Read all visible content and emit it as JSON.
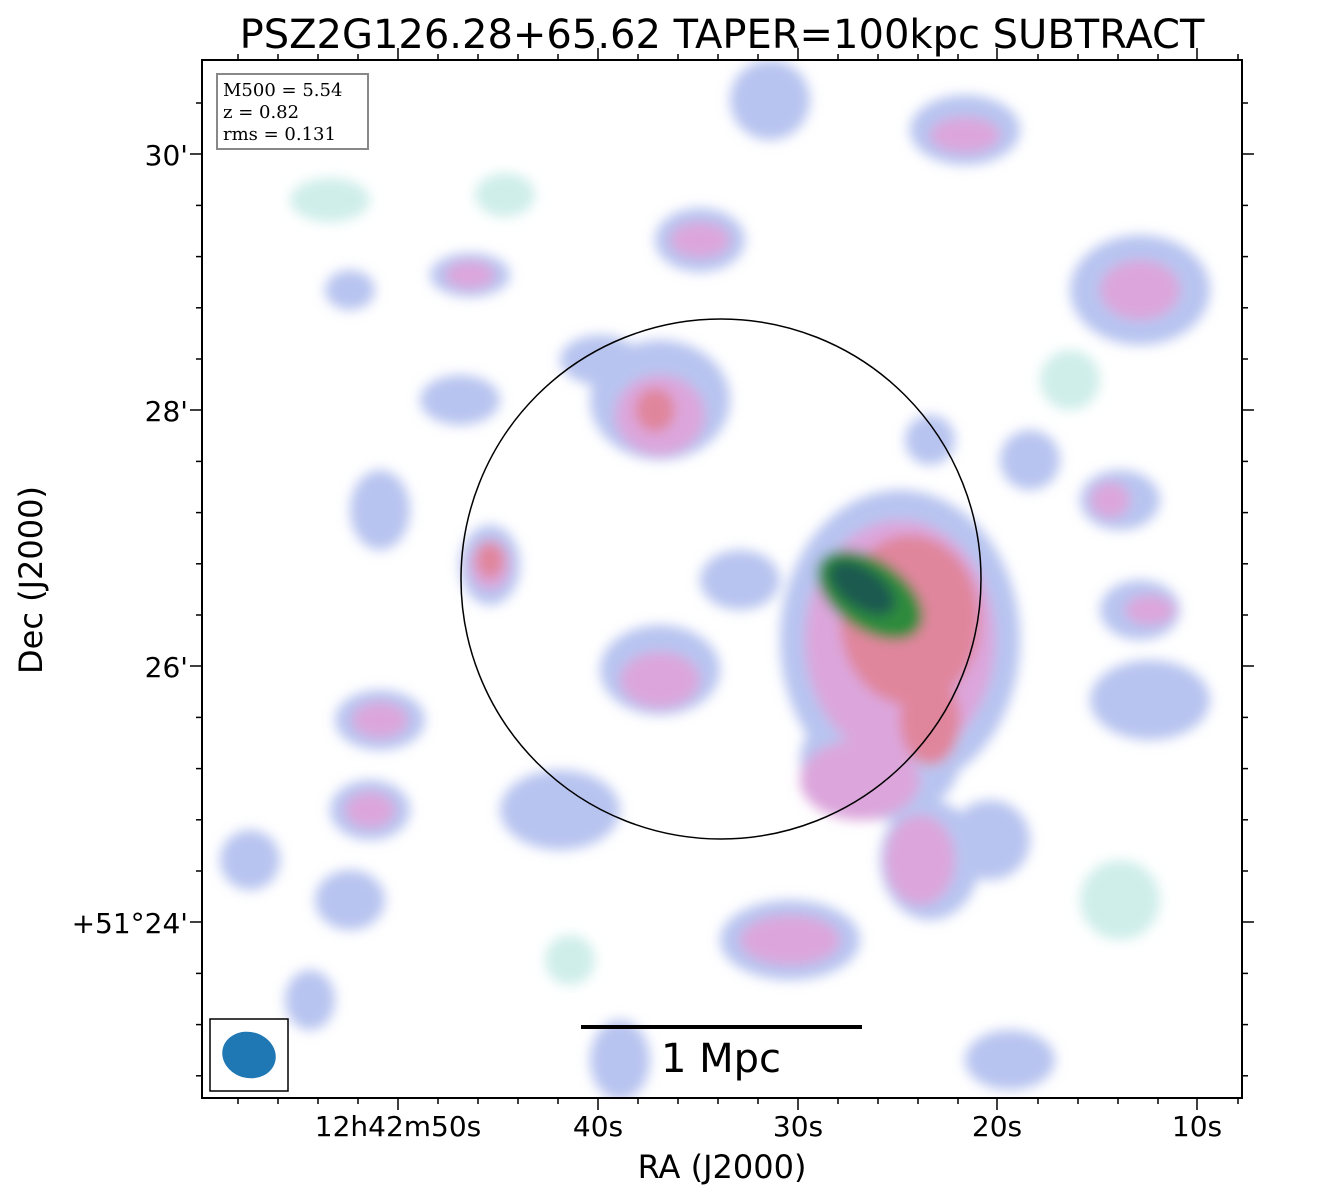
{
  "title": "PSZ2G126.28+65.62 TAPER=100kpc SUBTRACT",
  "info_box": {
    "line1": "M500 = 5.54",
    "line2": "z = 0.82",
    "line3": "rms = 0.131"
  },
  "x_axis": {
    "label": "RA (J2000)",
    "ticks": [
      "12h42m50s",
      "40s",
      "30s",
      "20s",
      "10s"
    ]
  },
  "y_axis": {
    "label": "Dec (J2000)",
    "ticks": [
      "30'",
      "28'",
      "26'",
      "+51°24'"
    ]
  },
  "scale_bar": {
    "label": "1 Mpc"
  },
  "colors": {
    "faint": "#cfeeea",
    "low": "#b8c4f0",
    "mid": "#dca6dc",
    "high": "#e0869c",
    "peak": "#2a8a3a",
    "core": "#1a5a50",
    "beam": "#1f77b4"
  }
}
